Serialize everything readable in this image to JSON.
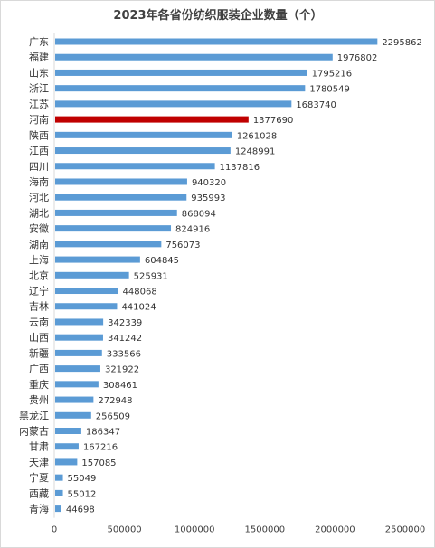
{
  "chart_data": {
    "type": "bar",
    "orientation": "horizontal",
    "title": "2023年各省份纺织服装企业数量（个）",
    "categories": [
      "广东",
      "福建",
      "山东",
      "浙江",
      "江苏",
      "河南",
      "陕西",
      "江西",
      "四川",
      "海南",
      "河北",
      "湖北",
      "安徽",
      "湖南",
      "上海",
      "北京",
      "辽宁",
      "吉林",
      "云南",
      "山西",
      "新疆",
      "广西",
      "重庆",
      "贵州",
      "黑龙江",
      "内蒙古",
      "甘肃",
      "天津",
      "宁夏",
      "西藏",
      "青海"
    ],
    "values": [
      2295862,
      1976802,
      1795216,
      1780549,
      1683740,
      1377690,
      1261028,
      1248991,
      1137816,
      940320,
      935993,
      868094,
      824916,
      756073,
      604845,
      525931,
      448068,
      441024,
      342339,
      341242,
      333566,
      321922,
      308461,
      272948,
      256509,
      186347,
      167216,
      157085,
      55049,
      55012,
      44698
    ],
    "xlim": [
      0,
      2500000
    ],
    "xticks": [
      0,
      500000,
      1000000,
      1500000,
      2000000,
      2500000
    ],
    "grid": false,
    "legend": "none",
    "colors": {
      "default": "#5b9bd5",
      "highlight": "#c00000",
      "highlight_category": "河南"
    }
  }
}
